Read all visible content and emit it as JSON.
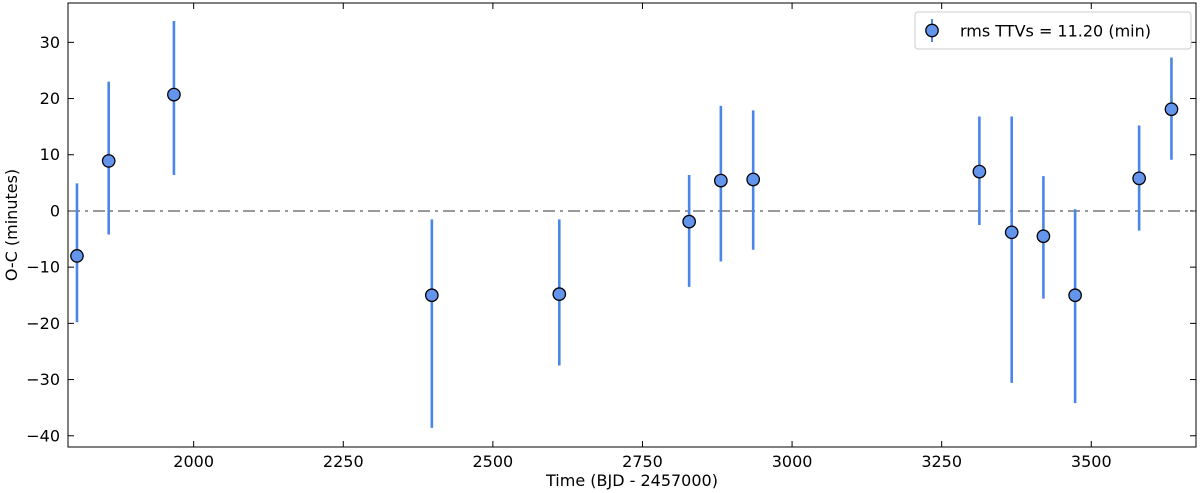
{
  "chart_data": {
    "type": "scatter",
    "xlabel": "Time (BJD - 2457000)",
    "ylabel": "O-C (minutes)",
    "xlim": [
      1790,
      3675
    ],
    "ylim": [
      -42,
      37
    ],
    "xticks": [
      2000,
      2250,
      2500,
      2750,
      3000,
      3250,
      3500
    ],
    "yticks": [
      -40,
      -30,
      -20,
      -10,
      0,
      10,
      20,
      30
    ],
    "reference_line": {
      "y": 0,
      "style": "dash-dot",
      "color": "#999999"
    },
    "grid": false,
    "legend": {
      "position": "top-right",
      "label": "rms TTVs = 11.20 (min)"
    },
    "marker_color": "#6495ED",
    "errorbar_color": "#4a86e8",
    "series": [
      {
        "name": "rms TTVs = 11.20 (min)",
        "points": [
          {
            "x": 1805,
            "y": -8.0,
            "ylo": -19.8,
            "yhi": 4.9
          },
          {
            "x": 1858,
            "y": 8.9,
            "ylo": -4.2,
            "yhi": 23.0
          },
          {
            "x": 1967,
            "y": 20.7,
            "ylo": 6.4,
            "yhi": 33.8
          },
          {
            "x": 2398,
            "y": -15.0,
            "ylo": -38.6,
            "yhi": -1.5
          },
          {
            "x": 2611,
            "y": -14.8,
            "ylo": -27.5,
            "yhi": -1.5
          },
          {
            "x": 2828,
            "y": -1.9,
            "ylo": -13.5,
            "yhi": 6.4
          },
          {
            "x": 2881,
            "y": 5.4,
            "ylo": -9.0,
            "yhi": 18.7
          },
          {
            "x": 2935,
            "y": 5.6,
            "ylo": -6.9,
            "yhi": 17.9
          },
          {
            "x": 3313,
            "y": 7.0,
            "ylo": -2.5,
            "yhi": 16.8
          },
          {
            "x": 3367,
            "y": -3.8,
            "ylo": -30.6,
            "yhi": 16.8
          },
          {
            "x": 3420,
            "y": -4.5,
            "ylo": -15.6,
            "yhi": 6.2
          },
          {
            "x": 3473,
            "y": -15.0,
            "ylo": -34.2,
            "yhi": 0.3
          },
          {
            "x": 3580,
            "y": 5.8,
            "ylo": -3.5,
            "yhi": 15.2
          },
          {
            "x": 3634,
            "y": 18.1,
            "ylo": 9.1,
            "yhi": 27.3
          }
        ]
      }
    ]
  }
}
